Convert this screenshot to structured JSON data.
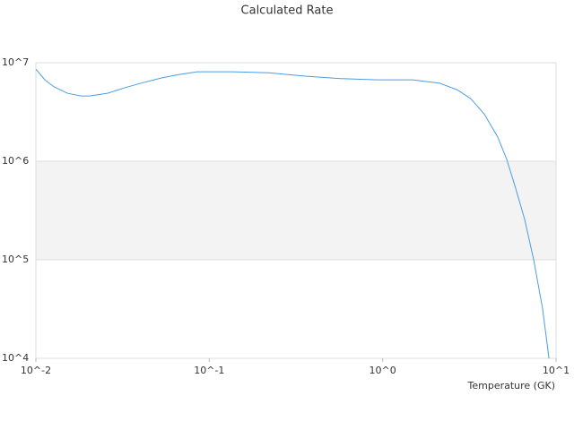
{
  "chart_data": {
    "type": "line",
    "title": "Calculated Rate",
    "x_label": "Temperature (GK)",
    "xscale": "log",
    "yscale": "log",
    "grid": true,
    "xlim": [
      0.01,
      10
    ],
    "ylim": [
      10000,
      10000000
    ],
    "xticks": [
      {
        "value": 0.01,
        "label": "10^-2"
      },
      {
        "value": 0.1,
        "label": "10^-1"
      },
      {
        "value": 1,
        "label": "10^0"
      },
      {
        "value": 10,
        "label": "10^1"
      }
    ],
    "yticks": [
      {
        "value": 10000,
        "label": "10^4"
      },
      {
        "value": 100000,
        "label": "10^5"
      },
      {
        "value": 1000000,
        "label": "10^6"
      },
      {
        "value": 10000000,
        "label": "10^7"
      }
    ],
    "series": [
      {
        "color": "#4a9de8",
        "x": [
          0.01,
          0.01127,
          0.0127,
          0.0152,
          0.01815,
          0.0204,
          0.0259,
          0.0329,
          0.0418,
          0.053,
          0.0673,
          0.0853,
          0.137,
          0.221,
          0.356,
          0.574,
          0.924,
          1.49,
          2.13,
          2.7,
          3.23,
          3.86,
          4.61,
          5.2,
          5.85,
          6.59,
          7.43,
          8.36,
          9.1
        ],
        "values": [
          8600000,
          6700000,
          5700000,
          4900000,
          4600000,
          4600000,
          4900000,
          5600000,
          6300000,
          7000000,
          7600000,
          8100000,
          8100000,
          7900000,
          7300000,
          6900000,
          6700000,
          6700000,
          6200000,
          5300000,
          4300000,
          3000000,
          1760000,
          1040000,
          530000,
          257000,
          100000,
          32000,
          10000
        ]
      }
    ]
  }
}
